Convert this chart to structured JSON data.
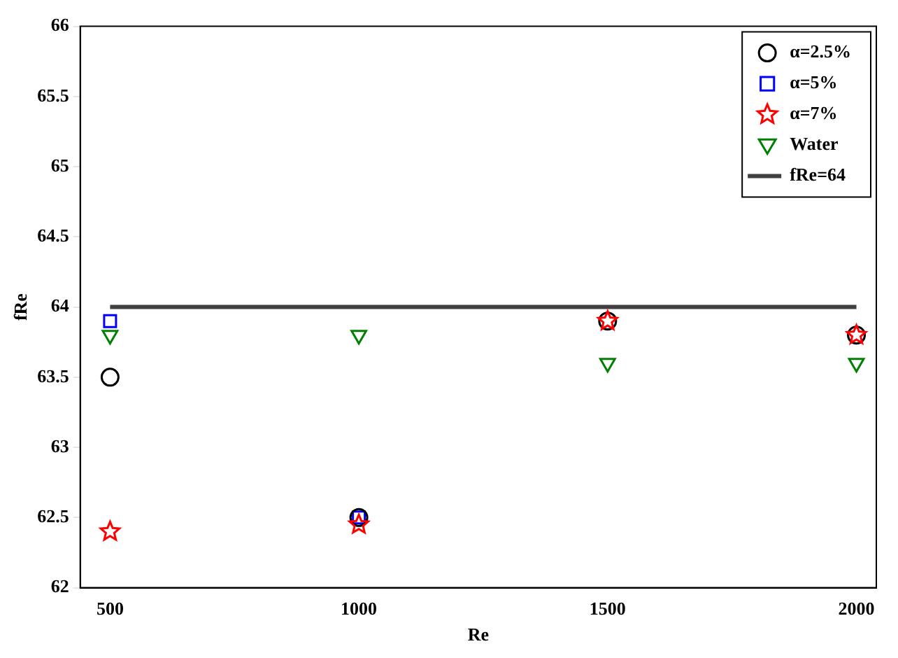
{
  "chart_data": {
    "type": "scatter",
    "xlabel": "Re",
    "ylabel": "fRe",
    "xlim": [
      440,
      2040
    ],
    "xticks": [
      500,
      1000,
      1500,
      2000
    ],
    "ylim": [
      62,
      66
    ],
    "yticks": [
      62,
      62.5,
      63,
      63.5,
      64,
      64.5,
      65,
      65.5,
      66
    ],
    "grid": false,
    "legend": "top right",
    "x": [
      500,
      1000,
      1500,
      2000
    ],
    "series": [
      {
        "name": "α=2.5%",
        "color": "#000000",
        "marker": "circle",
        "values": [
          63.5,
          62.5,
          63.9,
          63.8
        ]
      },
      {
        "name": "α=5%",
        "color": "#0000ff",
        "marker": "square",
        "values": [
          63.9,
          62.5,
          null,
          null
        ]
      },
      {
        "name": "α=7%",
        "color": "#ff0000",
        "marker": "star",
        "values": [
          62.4,
          62.45,
          63.9,
          63.8
        ]
      },
      {
        "name": "Water",
        "color": "#008000",
        "marker": "triangle",
        "values": [
          63.8,
          63.8,
          63.6,
          63.6
        ]
      },
      {
        "name": "fRe=64",
        "color": "#404040",
        "type": "line",
        "marker": "none",
        "x": [
          500,
          2000
        ],
        "values": [
          64,
          64
        ]
      }
    ]
  }
}
